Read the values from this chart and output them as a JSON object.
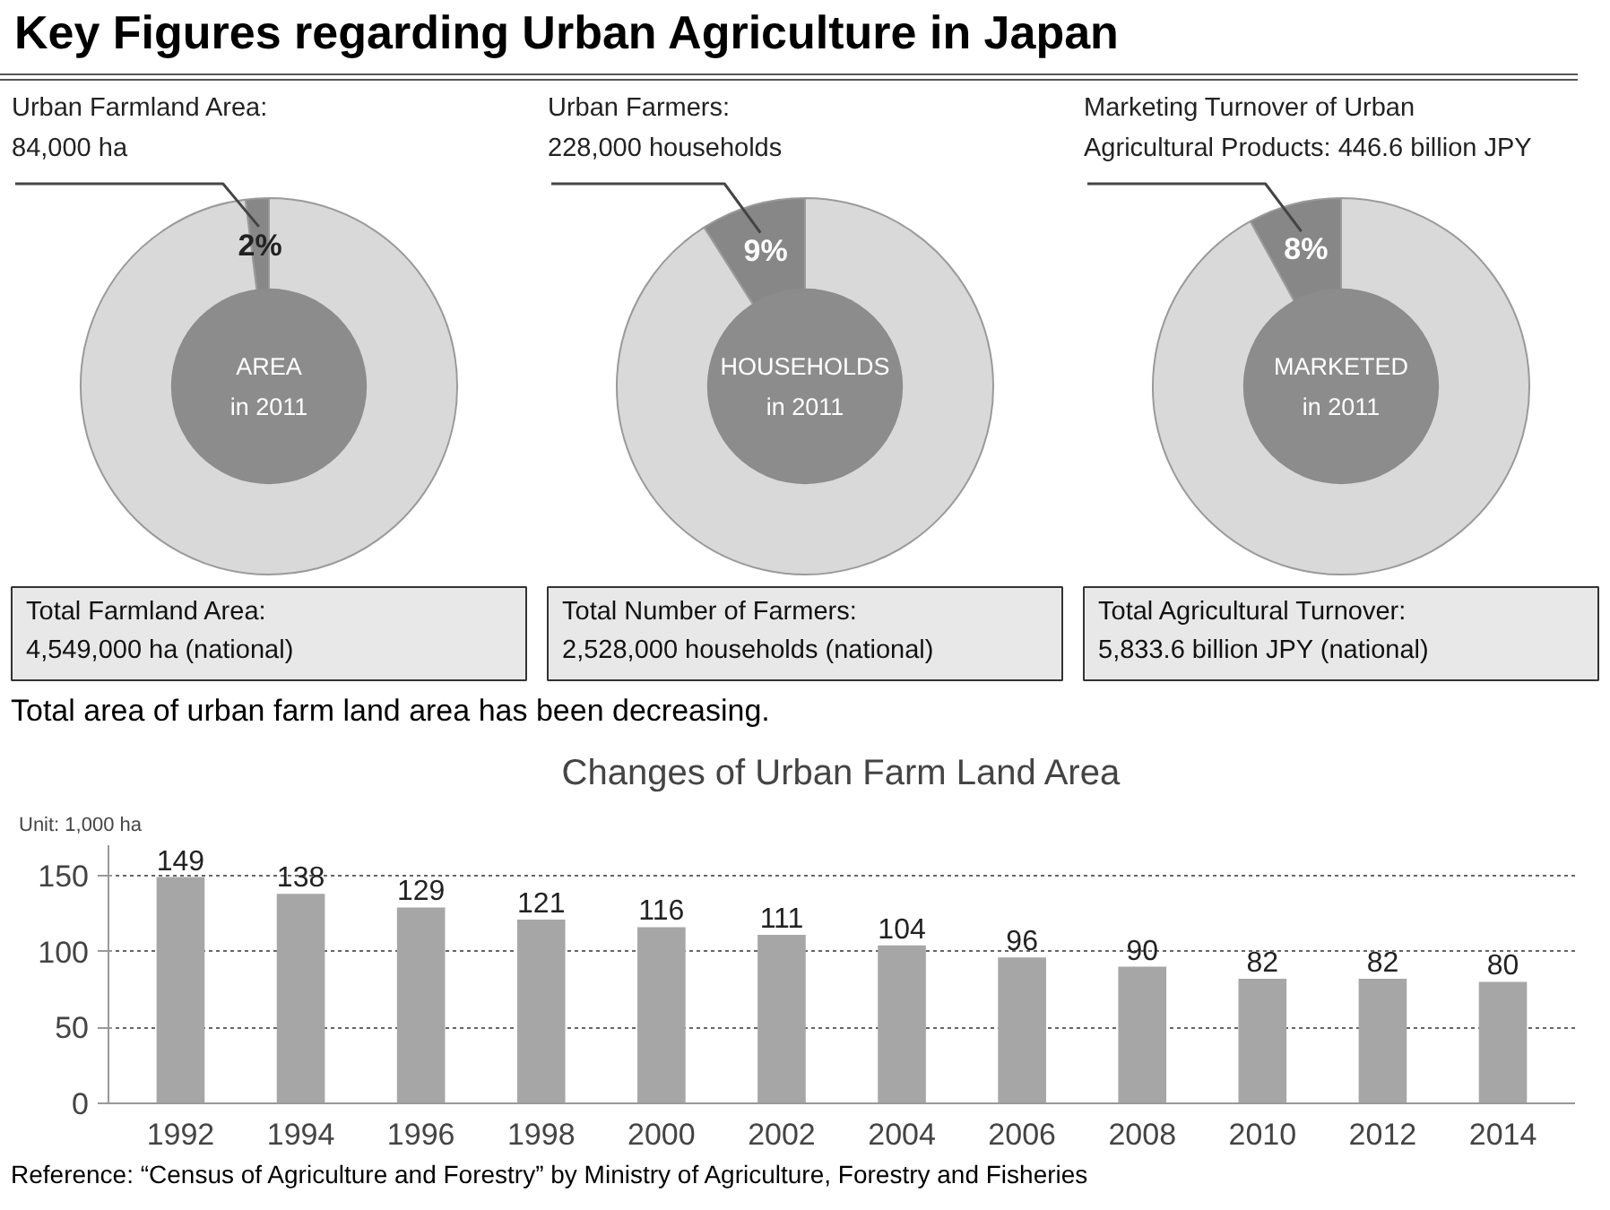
{
  "chart_data": [
    {
      "type": "other",
      "title": "Key Figures regarding Urban Agriculture in Japan"
    },
    {
      "type": "donut",
      "title": "Urban Farmland Area:\n84,000 ha",
      "categories": [
        null,
        null
      ],
      "values": [
        2,
        98
      ],
      "colors": [
        "#878787",
        "#d9d9d9"
      ],
      "value_labels": [
        "2%",
        null
      ],
      "annotations": [
        "AREA\nin 2011",
        "Total  Farmland Area:\n4,549,000 ha (national)"
      ]
    },
    {
      "type": "donut",
      "title": "Urban Farmers:\n228,000 households",
      "categories": [
        null,
        null
      ],
      "values": [
        9,
        91
      ],
      "colors": [
        "#878787",
        "#d9d9d9"
      ],
      "value_labels": [
        "9%",
        null
      ],
      "annotations": [
        "HOUSEHOLDS\nin 2011",
        "Total Number of Farmers:\n2,528,000 households (national)"
      ]
    },
    {
      "type": "donut",
      "title": "Marketing Turnover of Urban\nAgricultural Products: 446.6 billion JPY",
      "categories": [
        null,
        null
      ],
      "values": [
        8,
        92
      ],
      "colors": [
        "#878787",
        "#d9d9d9"
      ],
      "value_labels": [
        "8%",
        null
      ],
      "annotations": [
        "MARKETED\nin 2011",
        "Total Agricultural Turnover:\n5,833.6 billion JPY (national)"
      ]
    },
    {
      "type": "bar",
      "title": "Changes of Urban Farm Land Area",
      "ylabel": "Unit: 1,000 ha",
      "categories": [
        "1992",
        "1994",
        "1996",
        "1998",
        "2000",
        "2002",
        "2004",
        "2006",
        "2008",
        "2010",
        "2012",
        "2014"
      ],
      "values": [
        149,
        138,
        129,
        121,
        116,
        111,
        104,
        96,
        90,
        82,
        82,
        80
      ],
      "color": "#a6a6a6",
      "data_labels": true,
      "ylim": [
        0,
        170
      ],
      "yticks": [
        0,
        50,
        100,
        150
      ],
      "grid": "y",
      "annotations": [
        "Total area of urban farm land area has been decreasing.",
        "Reference: “Census of Agriculture and Forestry” by Ministry of Agriculture, Forestry and Fisheries"
      ]
    }
  ]
}
